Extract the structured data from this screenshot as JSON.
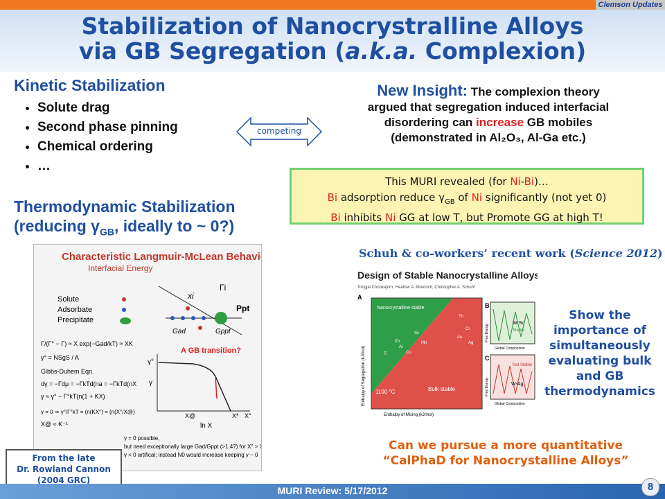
{
  "header": {
    "tag": "Clemson Updates",
    "title_line1": "Stabilization of Nanocrystralline Alloys",
    "title_line2_pre": "via GB Segregation (",
    "title_line2_em": "a.k.a.",
    "title_line2_post": " Complexion)"
  },
  "kinetic": {
    "title": "Kinetic Stabilization",
    "items": [
      "Solute drag",
      "Second phase pinning",
      "Chemical ordering",
      "…"
    ]
  },
  "thermo": {
    "line1": "Thermodynamic Stabilization",
    "line2_pre": "(reducing ",
    "gamma": "γ",
    "sub": "GB",
    "line2_post": ", ideally to ~ 0?)"
  },
  "competing": "competing",
  "insight": {
    "lead": "New Insight:",
    "text1": " The complexion theory",
    "text2": "argued that segregation induced interfacial",
    "text3_pre": "disordering can ",
    "text3_red": "increase",
    "text3_post": " GB mobiles",
    "text4": "(demonstrated in Al₂O₃, Al-Ga etc.)"
  },
  "muri_box": {
    "line1_pre": "This MURI revealed (for ",
    "ni": "Ni",
    "bi": "Bi",
    "line1_post": ")…",
    "line2_mid": " adsorption reduce γ",
    "line2_sub": "GB",
    "line2_of": " of ",
    "line2_post": " significantly (not yet 0)",
    "line3_mid": " inhibits ",
    "line3_post": " GG at low T, but Promote GG at high T!"
  },
  "figure": {
    "title": "Characteristic Langmuir-McLean Behavior",
    "subtitle": "Interfacial Energy",
    "legend": [
      "Solute",
      "Adsorbate",
      "Precipitate"
    ],
    "labels": {
      "gamma_i": "Γi",
      "x_i": "xi",
      "ppt": "Ppt",
      "gad": "Gad",
      "gppt": "Gppt"
    },
    "callout": "A GB transition?",
    "axis": {
      "xlabel": "ln X",
      "ticks": [
        "X@",
        "X*",
        "X°"
      ],
      "ylabels": [
        "γ°",
        "γ"
      ]
    },
    "equations": [
      "Γ/(Γ° − Γ) ≈ X exp(−Gad/kT) ≈ XK",
      "γ° = NSgS / A",
      "Gibbs-Duhem Eqn.",
      "dγ = −Γdμ = −ΓkTd(na = −ΓkTd(nX",
      "γ ≈ γ° − Γ°kT(n(1 + KX)",
      "γ = 0 ⇒ γ°/Γ°kT = (n(KX°) = (n(X°/X@)",
      "X@ ≈ K⁻¹"
    ],
    "notes": [
      "γ = 0 possible,",
      "but need exceptionally large Gad/Gppt (>1.4?) for X° > X*",
      "γ < 0 artifical; instead N0 would increase keeping γ ~ 0"
    ]
  },
  "from_box": {
    "line1": "From the late",
    "line2": "Dr. Rowland Cannon",
    "line3": "(2004 GRC)"
  },
  "schuh": {
    "pre": "Schuh & co-workers’ recent work (",
    "em": "Science 2012",
    "post": ")"
  },
  "schuh_fig": {
    "title": "Design of Stable Nanocrystalline Alloys",
    "authors": "Tongjai Chookajorn, Heather A. Murdoch, Christopher A. Schuh*",
    "panel_a": "A",
    "panel_b": "B",
    "panel_c": "C",
    "nano_label": "Nanocrystalline stable",
    "bulk_label": "Bulk stable",
    "temp": "1100 °C",
    "xlabel": "Enthalpy of Mixing (kJ/mol)",
    "ylabel": "Enthalpy of Segregation (kJ/mol)",
    "b_label": "W-Sc",
    "b_stable": "Stable",
    "c_label": "W-Ag",
    "c_notstable": "Not Stable",
    "comp_label": "Global Composition",
    "fe_label": "Free Energy",
    "elements": [
      "Ti",
      "Sc",
      "Zn",
      "Al",
      "Cu",
      "Mn",
      "Th",
      "Cr",
      "Au",
      "Ag"
    ]
  },
  "show": [
    "Show the",
    "importance of",
    "simultaneously",
    "evaluating bulk",
    "and GB",
    "thermodynamics"
  ],
  "calphad": {
    "line1": "Can we pursue a more quantitative",
    "line2": "“CalPhaD for Nanocrystalline Alloys”"
  },
  "footer": {
    "text": "MURI Review: 5/17/2012",
    "page": "8"
  }
}
